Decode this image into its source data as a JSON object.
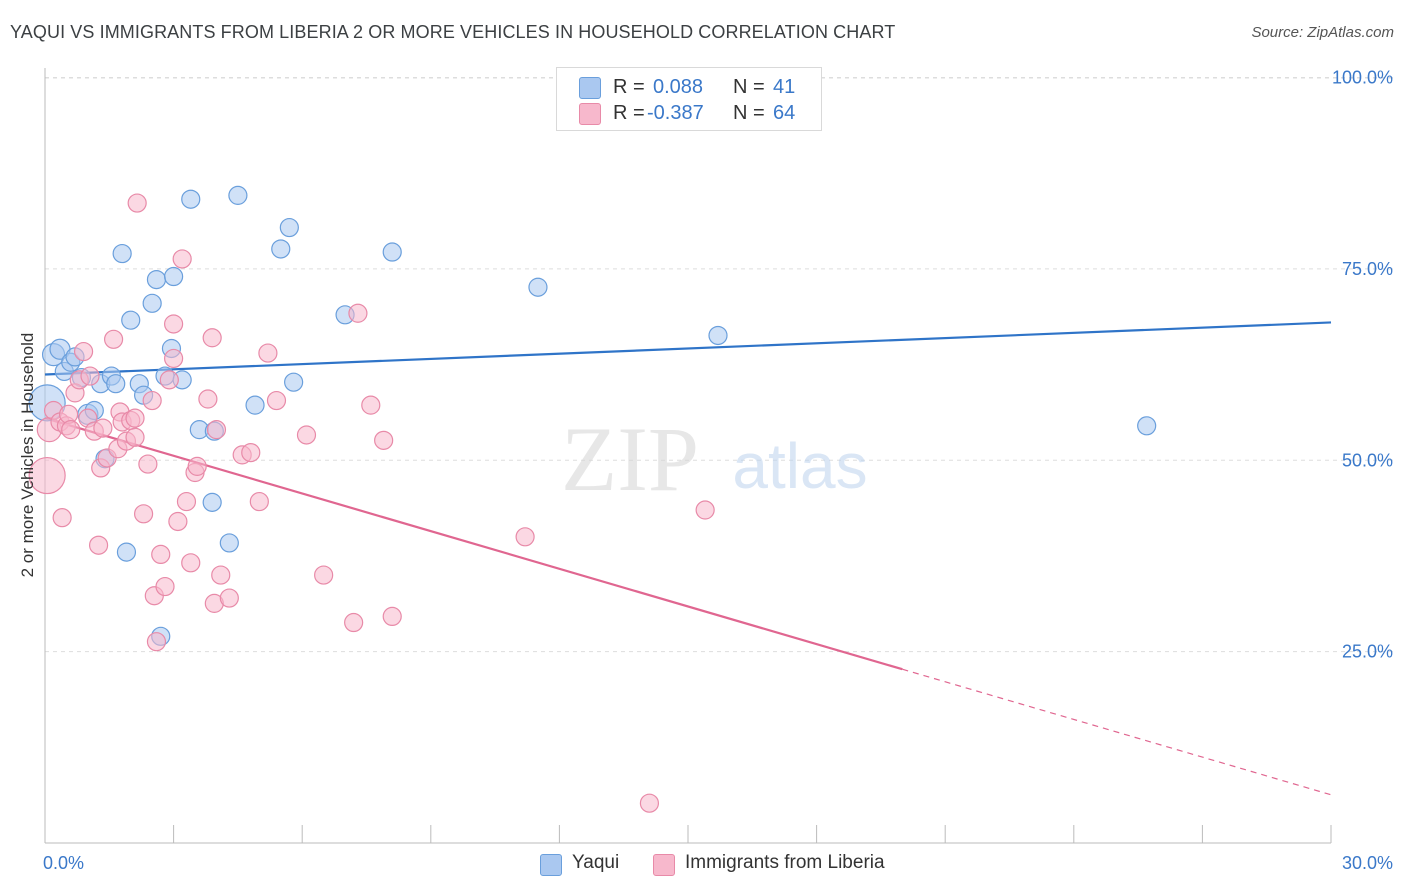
{
  "title": "YAQUI VS IMMIGRANTS FROM LIBERIA 2 OR MORE VEHICLES IN HOUSEHOLD CORRELATION CHART",
  "source": "Source: ZipAtlas.com",
  "watermark": {
    "zip": "ZIP",
    "atlas": "atlas"
  },
  "legend": {
    "rows": [
      {
        "r_label": "R =",
        "r_value": "0.088",
        "n_label": "N =",
        "n_value": "41"
      },
      {
        "r_label": "R =",
        "r_value": "-0.387",
        "n_label": "N =",
        "n_value": "64"
      }
    ]
  },
  "bottom_legend": {
    "yaqui": "Yaqui",
    "liberia": "Immigrants from Liberia"
  },
  "colors": {
    "yaqui_fill": "#aac8f0",
    "yaqui_stroke": "#6a9fdc",
    "yaqui_line": "#2f74c8",
    "liberia_fill": "#f7b8cc",
    "liberia_stroke": "#e88aa8",
    "liberia_line": "#e06690",
    "axis_text": "#3a78c9",
    "grid": "#dddddd"
  },
  "chart_data": {
    "type": "scatter",
    "title": "YAQUI VS IMMIGRANTS FROM LIBERIA 2 OR MORE VEHICLES IN HOUSEHOLD CORRELATION CHART",
    "xlabel": "",
    "ylabel": "2 or more Vehicles in Household",
    "xlim": [
      0,
      30
    ],
    "ylim": [
      0,
      103
    ],
    "x_tick_labels": [
      "0.0%",
      "30.0%"
    ],
    "y_tick_values": [
      25,
      50,
      75,
      100
    ],
    "y_tick_labels": [
      "25.0%",
      "50.0%",
      "75.0%",
      "100.0%"
    ],
    "grid": true,
    "legend_placement": "top-center",
    "series": [
      {
        "name": "Yaqui",
        "R": 0.088,
        "N": 41,
        "trend": {
          "x": [
            0,
            30
          ],
          "y": [
            61.2,
            68.0
          ],
          "solid_to": 30
        },
        "points": [
          [
            0.05,
            57.5,
            18
          ],
          [
            0.2,
            63.8,
            11
          ],
          [
            0.35,
            64.5,
            10
          ],
          [
            0.45,
            61.6,
            9
          ],
          [
            0.6,
            62.8,
            9
          ],
          [
            0.7,
            63.5,
            9
          ],
          [
            0.85,
            60.8,
            9
          ],
          [
            1.0,
            56.0,
            10
          ],
          [
            1.15,
            56.5,
            9
          ],
          [
            1.3,
            60.0,
            9
          ],
          [
            1.4,
            50.2,
            9
          ],
          [
            1.55,
            61.0,
            9
          ],
          [
            1.65,
            60.0,
            9
          ],
          [
            1.8,
            77.0,
            9
          ],
          [
            1.9,
            38.0,
            9
          ],
          [
            2.0,
            68.3,
            9
          ],
          [
            2.2,
            60.0,
            9
          ],
          [
            2.3,
            58.5,
            9
          ],
          [
            2.5,
            70.5,
            9
          ],
          [
            2.6,
            73.6,
            9
          ],
          [
            2.7,
            27.0,
            9
          ],
          [
            2.8,
            61.0,
            9
          ],
          [
            2.95,
            64.6,
            9
          ],
          [
            3.0,
            74.0,
            9
          ],
          [
            3.2,
            60.5,
            9
          ],
          [
            3.4,
            84.1,
            9
          ],
          [
            3.6,
            54.0,
            9
          ],
          [
            3.9,
            44.5,
            9
          ],
          [
            3.95,
            53.8,
            9
          ],
          [
            4.3,
            39.2,
            9
          ],
          [
            4.5,
            84.6,
            9
          ],
          [
            4.9,
            57.2,
            9
          ],
          [
            5.5,
            77.6,
            9
          ],
          [
            5.7,
            80.4,
            9
          ],
          [
            5.8,
            60.2,
            9
          ],
          [
            7.0,
            69.0,
            9
          ],
          [
            8.1,
            77.2,
            9
          ],
          [
            11.5,
            72.6,
            9
          ],
          [
            15.7,
            66.3,
            9
          ],
          [
            25.7,
            54.5,
            9
          ]
        ]
      },
      {
        "name": "Immigrants from Liberia",
        "R": -0.387,
        "N": 64,
        "trend": {
          "x": [
            0,
            30
          ],
          "y": [
            55.5,
            6.3
          ],
          "solid_to": 20
        },
        "points": [
          [
            0.05,
            48.0,
            18
          ],
          [
            0.1,
            54.0,
            12
          ],
          [
            0.2,
            56.5,
            9
          ],
          [
            0.35,
            55.0,
            9
          ],
          [
            0.4,
            42.5,
            9
          ],
          [
            0.5,
            54.5,
            9
          ],
          [
            0.55,
            56.0,
            9
          ],
          [
            0.6,
            54.0,
            9
          ],
          [
            0.7,
            58.8,
            9
          ],
          [
            0.8,
            60.5,
            9
          ],
          [
            0.9,
            64.2,
            9
          ],
          [
            1.0,
            55.5,
            9
          ],
          [
            1.05,
            61.0,
            9
          ],
          [
            1.15,
            53.8,
            9
          ],
          [
            1.25,
            38.9,
            9
          ],
          [
            1.3,
            49.0,
            9
          ],
          [
            1.45,
            50.3,
            9
          ],
          [
            1.6,
            65.8,
            9
          ],
          [
            1.7,
            51.5,
            9
          ],
          [
            1.75,
            56.3,
            9
          ],
          [
            1.8,
            55.0,
            9
          ],
          [
            1.9,
            52.5,
            9
          ],
          [
            2.0,
            55.2,
            9
          ],
          [
            2.1,
            53.0,
            9
          ],
          [
            2.15,
            83.6,
            9
          ],
          [
            2.3,
            43.0,
            9
          ],
          [
            2.4,
            49.5,
            9
          ],
          [
            2.5,
            57.8,
            9
          ],
          [
            2.55,
            32.3,
            9
          ],
          [
            2.6,
            26.3,
            9
          ],
          [
            2.7,
            37.7,
            9
          ],
          [
            2.8,
            33.5,
            9
          ],
          [
            2.9,
            60.5,
            9
          ],
          [
            3.0,
            63.3,
            9
          ],
          [
            3.0,
            67.8,
            9
          ],
          [
            3.1,
            42.0,
            9
          ],
          [
            3.2,
            76.3,
            9
          ],
          [
            3.3,
            44.6,
            9
          ],
          [
            3.4,
            36.6,
            9
          ],
          [
            3.5,
            48.4,
            9
          ],
          [
            3.55,
            49.2,
            9
          ],
          [
            3.8,
            58.0,
            9
          ],
          [
            3.9,
            66.0,
            9
          ],
          [
            3.95,
            31.3,
            9
          ],
          [
            4.1,
            35.0,
            9
          ],
          [
            4.3,
            32.0,
            9
          ],
          [
            4.6,
            50.7,
            9
          ],
          [
            4.8,
            51.0,
            9
          ],
          [
            5.0,
            44.6,
            9
          ],
          [
            5.2,
            64.0,
            9
          ],
          [
            5.4,
            57.8,
            9
          ],
          [
            6.1,
            53.3,
            9
          ],
          [
            6.5,
            35.0,
            9
          ],
          [
            7.2,
            28.8,
            9
          ],
          [
            7.3,
            69.2,
            9
          ],
          [
            7.6,
            57.2,
            9
          ],
          [
            7.9,
            52.6,
            9
          ],
          [
            8.1,
            29.6,
            9
          ],
          [
            11.2,
            40.0,
            9
          ],
          [
            14.1,
            5.2,
            9
          ],
          [
            15.4,
            43.5,
            9
          ],
          [
            4.0,
            54.0,
            9
          ],
          [
            2.1,
            55.5,
            9
          ],
          [
            1.35,
            54.2,
            9
          ]
        ]
      }
    ]
  }
}
